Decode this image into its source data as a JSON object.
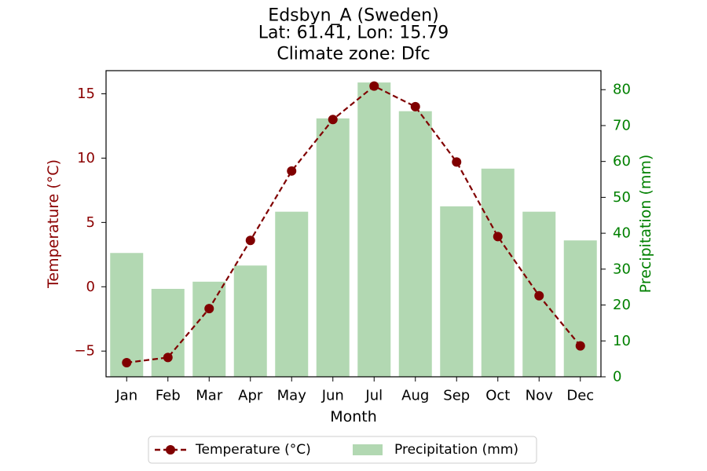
{
  "chart_data": {
    "type": "bar+line",
    "title_lines": [
      "Edsbyn_A (Sweden)",
      "Lat: 61.41, Lon: 15.79",
      "Climate zone: Dfc"
    ],
    "xlabel": "Month",
    "ylabel_left": "Temperature (°C)",
    "ylabel_right": "Precipitation (mm)",
    "categories": [
      "Jan",
      "Feb",
      "Mar",
      "Apr",
      "May",
      "Jun",
      "Jul",
      "Aug",
      "Sep",
      "Oct",
      "Nov",
      "Dec"
    ],
    "series": [
      {
        "name": "Precipitation (mm)",
        "kind": "bar",
        "axis": "right",
        "color": "#b2d8b2",
        "values": [
          34.5,
          24.5,
          26.5,
          31.0,
          46.0,
          72.0,
          82.0,
          74.0,
          47.5,
          58.0,
          46.0,
          38.0
        ]
      },
      {
        "name": "Temperature (°C)",
        "kind": "line",
        "axis": "left",
        "color": "#800000",
        "line_style": "dashed",
        "marker": "circle",
        "values": [
          -5.9,
          -5.5,
          -1.7,
          3.6,
          9.0,
          13.0,
          15.6,
          14.0,
          9.7,
          3.9,
          -0.7,
          -4.6
        ]
      }
    ],
    "ylim_left": [
      -7,
      16.8
    ],
    "ylim_right": [
      0,
      85.3
    ],
    "yticks_left": [
      -5,
      0,
      5,
      10,
      15
    ],
    "yticks_left_labels": [
      "−5",
      "0",
      "5",
      "10",
      "15"
    ],
    "yticks_right": [
      0,
      10,
      20,
      30,
      40,
      50,
      60,
      70,
      80
    ],
    "left_axis_color": "#8b0000",
    "right_axis_color": "#008000",
    "grid": false,
    "legend_placement": "bottom-center"
  }
}
